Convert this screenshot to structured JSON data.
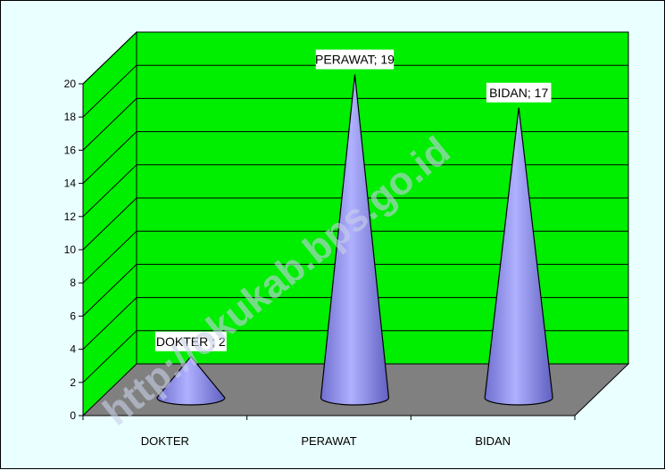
{
  "chart_data": {
    "type": "bar",
    "style": "3d-cone",
    "categories": [
      "DOKTER",
      "PERAWAT",
      "BIDAN"
    ],
    "values": [
      2,
      19,
      17
    ],
    "data_labels": [
      "DOKTER ; 2",
      "PERAWAT; 19",
      "BIDAN; 17"
    ],
    "yticks": [
      "0",
      "2",
      "4",
      "6",
      "8",
      "10",
      "12",
      "14",
      "16",
      "18",
      "20"
    ],
    "ylim": [
      0,
      20
    ],
    "grid": true,
    "legend": "none",
    "watermark": "http://okukab.bps.go.id",
    "colors": {
      "background": "#eaffff",
      "wall": "#00ee00",
      "floor": "#808080",
      "cone": "#9b9bee",
      "cone_dark": "#6f6fd0"
    }
  }
}
